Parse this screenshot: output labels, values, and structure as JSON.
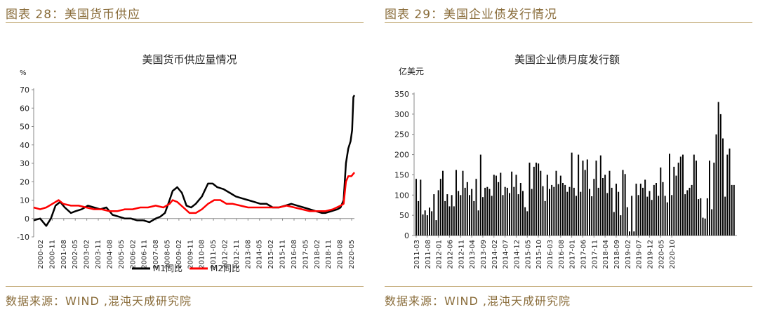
{
  "panels": [
    {
      "header": "图表 28：美国货币供应",
      "source": "数据来源：WIND ,混沌天成研究院"
    },
    {
      "header": "图表 29：美国企业债发行情况",
      "source": "数据来源：WIND ,混沌天成研究院"
    }
  ],
  "chart_data": [
    {
      "type": "line",
      "title": "美国货币供应量情况",
      "ylabel": "%",
      "ylim": [
        -10,
        70
      ],
      "yticks": [
        -10,
        0,
        10,
        20,
        30,
        40,
        50,
        60,
        70
      ],
      "xlim": [
        2000.083,
        2020.9
      ],
      "xtick_labels": [
        "2000-02",
        "2000-11",
        "2001-08",
        "2002-05",
        "2003-02",
        "2003-11",
        "2004-08",
        "2005-05",
        "2006-02",
        "2006-11",
        "2007-08",
        "2008-05",
        "2009-02",
        "2009-11",
        "2010-08",
        "2011-05",
        "2012-02",
        "2012-11",
        "2013-08",
        "2014-05",
        "2015-02",
        "2015-11",
        "2016-08",
        "2017-05",
        "2018-02",
        "2018-11",
        "2019-08",
        "2020-05"
      ],
      "legend": "bottom-center",
      "series": [
        {
          "name": "M1同比",
          "color": "#000000",
          "points": [
            [
              2000.08,
              -1
            ],
            [
              2000.5,
              0
            ],
            [
              2000.9,
              -4
            ],
            [
              2001.2,
              0
            ],
            [
              2001.5,
              7
            ],
            [
              2001.8,
              9
            ],
            [
              2002.1,
              6
            ],
            [
              2002.5,
              3
            ],
            [
              2002.8,
              4
            ],
            [
              2003.2,
              5
            ],
            [
              2003.6,
              7
            ],
            [
              2004.0,
              6
            ],
            [
              2004.4,
              5
            ],
            [
              2004.8,
              6
            ],
            [
              2005.2,
              2
            ],
            [
              2005.6,
              1
            ],
            [
              2006.0,
              0
            ],
            [
              2006.4,
              0
            ],
            [
              2006.8,
              -1
            ],
            [
              2007.2,
              -1
            ],
            [
              2007.6,
              -2
            ],
            [
              2008.0,
              0
            ],
            [
              2008.3,
              1
            ],
            [
              2008.6,
              3
            ],
            [
              2008.9,
              10
            ],
            [
              2009.1,
              15
            ],
            [
              2009.4,
              17
            ],
            [
              2009.7,
              14
            ],
            [
              2010.0,
              7
            ],
            [
              2010.3,
              6
            ],
            [
              2010.6,
              8
            ],
            [
              2011.0,
              12
            ],
            [
              2011.4,
              19
            ],
            [
              2011.7,
              19
            ],
            [
              2012.0,
              17
            ],
            [
              2012.4,
              16
            ],
            [
              2012.8,
              14
            ],
            [
              2013.2,
              12
            ],
            [
              2013.6,
              11
            ],
            [
              2014.0,
              10
            ],
            [
              2014.4,
              9
            ],
            [
              2014.8,
              8
            ],
            [
              2015.2,
              8
            ],
            [
              2015.6,
              6
            ],
            [
              2016.0,
              6
            ],
            [
              2016.4,
              7
            ],
            [
              2016.8,
              8
            ],
            [
              2017.2,
              7
            ],
            [
              2017.6,
              6
            ],
            [
              2018.0,
              5
            ],
            [
              2018.4,
              4
            ],
            [
              2018.8,
              3
            ],
            [
              2019.0,
              3
            ],
            [
              2019.4,
              4
            ],
            [
              2019.8,
              5
            ],
            [
              2020.0,
              6
            ],
            [
              2020.2,
              10
            ],
            [
              2020.35,
              30
            ],
            [
              2020.5,
              38
            ],
            [
              2020.65,
              42
            ],
            [
              2020.75,
              48
            ],
            [
              2020.83,
              66
            ],
            [
              2020.9,
              67
            ]
          ]
        },
        {
          "name": "M2同比",
          "color": "#ff0000",
          "points": [
            [
              2000.08,
              6
            ],
            [
              2000.5,
              5
            ],
            [
              2000.9,
              6
            ],
            [
              2001.3,
              8
            ],
            [
              2001.7,
              10
            ],
            [
              2002.0,
              8
            ],
            [
              2002.5,
              7
            ],
            [
              2003.0,
              7
            ],
            [
              2003.5,
              6
            ],
            [
              2004.0,
              5
            ],
            [
              2004.5,
              5
            ],
            [
              2005.0,
              4
            ],
            [
              2005.5,
              4
            ],
            [
              2006.0,
              5
            ],
            [
              2006.5,
              5
            ],
            [
              2007.0,
              6
            ],
            [
              2007.5,
              6
            ],
            [
              2008.0,
              7
            ],
            [
              2008.5,
              6
            ],
            [
              2008.9,
              8
            ],
            [
              2009.1,
              10
            ],
            [
              2009.4,
              9
            ],
            [
              2009.8,
              6
            ],
            [
              2010.2,
              3
            ],
            [
              2010.6,
              3
            ],
            [
              2011.0,
              5
            ],
            [
              2011.4,
              8
            ],
            [
              2011.8,
              10
            ],
            [
              2012.2,
              10
            ],
            [
              2012.6,
              8
            ],
            [
              2013.0,
              8
            ],
            [
              2013.5,
              7
            ],
            [
              2014.0,
              6
            ],
            [
              2014.5,
              6
            ],
            [
              2015.0,
              6
            ],
            [
              2015.5,
              6
            ],
            [
              2016.0,
              6
            ],
            [
              2016.5,
              7
            ],
            [
              2017.0,
              6
            ],
            [
              2017.5,
              5
            ],
            [
              2018.0,
              4
            ],
            [
              2018.5,
              4
            ],
            [
              2019.0,
              4
            ],
            [
              2019.5,
              5
            ],
            [
              2020.0,
              7
            ],
            [
              2020.2,
              8
            ],
            [
              2020.35,
              20
            ],
            [
              2020.5,
              23
            ],
            [
              2020.7,
              23
            ],
            [
              2020.9,
              25
            ]
          ]
        }
      ]
    },
    {
      "type": "bar",
      "title": "美国企业债月度发行额",
      "ylabel": "亿美元",
      "ylim": [
        0,
        350
      ],
      "yticks": [
        0,
        50,
        100,
        150,
        200,
        250,
        300,
        350
      ],
      "xtick_labels": [
        "2011-03",
        "2011-08",
        "2012-01",
        "2012-06",
        "2012-11",
        "2013-04",
        "2013-09",
        "2014-02",
        "2014-07",
        "2014-12",
        "2015-05",
        "2015-10",
        "2016-03",
        "2016-08",
        "2017-01",
        "2017-06",
        "2017-11",
        "2018-04",
        "2018-09",
        "2019-02",
        "2019-07",
        "2019-12",
        "2020-05",
        "2020-10"
      ],
      "color": "#000000",
      "values": [
        140,
        85,
        138,
        52,
        62,
        50,
        69,
        60,
        102,
        38,
        112,
        140,
        160,
        85,
        102,
        72,
        100,
        72,
        162,
        110,
        100,
        160,
        118,
        132,
        100,
        115,
        85,
        140,
        62,
        200,
        95,
        118,
        120,
        115,
        98,
        150,
        148,
        132,
        155,
        100,
        120,
        118,
        105,
        158,
        120,
        150,
        102,
        130,
        110,
        70,
        60,
        180,
        115,
        170,
        180,
        178,
        160,
        122,
        85,
        150,
        115,
        125,
        120,
        160,
        127,
        148,
        130,
        125,
        108,
        120,
        205,
        118,
        98,
        200,
        108,
        185,
        162,
        188,
        115,
        97,
        140,
        185,
        118,
        198,
        142,
        150,
        105,
        160,
        118,
        58,
        128,
        108,
        50,
        162,
        152,
        70,
        10,
        98,
        10,
        128,
        100,
        128,
        118,
        138,
        96,
        110,
        88,
        125,
        130,
        98,
        168,
        132,
        98,
        82,
        202,
        100,
        170,
        148,
        180,
        195,
        200,
        102,
        112,
        118,
        125,
        200,
        185,
        90,
        92,
        44,
        42,
        92,
        185,
        65,
        180,
        250,
        330,
        300,
        240,
        96,
        200,
        215,
        125,
        125
      ]
    }
  ]
}
